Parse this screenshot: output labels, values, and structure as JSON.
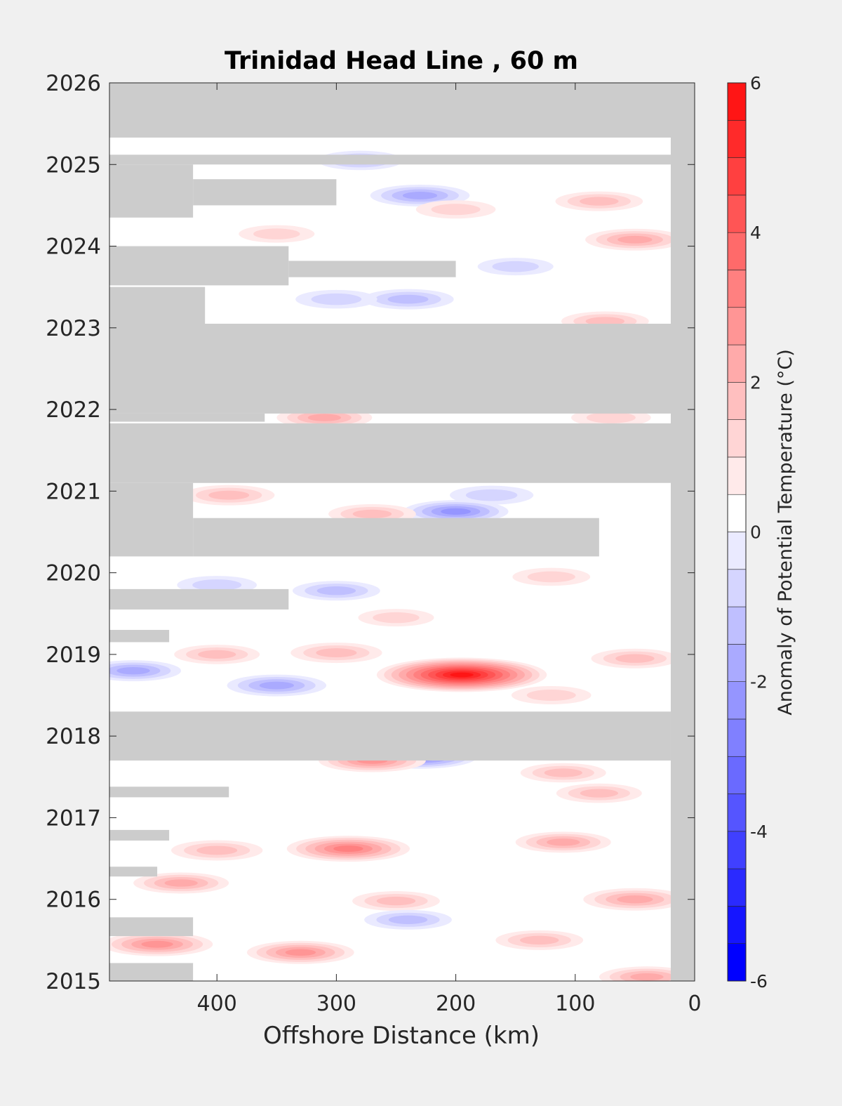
{
  "chart_data": {
    "type": "heatmap",
    "title": "Trinidad Head Line , 60 m",
    "xlabel": "Offshore Distance (km)",
    "ylabel": "",
    "xlim": [
      490,
      0
    ],
    "ylim": [
      2015,
      2026
    ],
    "x_reversed": true,
    "xticks": [
      400,
      300,
      200,
      100,
      0
    ],
    "yticks": [
      2015,
      2016,
      2017,
      2018,
      2019,
      2020,
      2021,
      2022,
      2023,
      2024,
      2025,
      2026
    ],
    "colorbar": {
      "label": "Anomaly of Potential Temperature (°C)",
      "min": -6,
      "max": 6,
      "step": 0.5,
      "ticks": [
        6,
        4,
        2,
        0,
        -2,
        -4,
        -6
      ],
      "low_color": "#0000ff",
      "mid_color": "#ffffff",
      "high_color": "#ff0000"
    },
    "nodata_color": "#cccccc",
    "nodata_bands": [
      {
        "t0": 2025.33,
        "t1": 2026.0,
        "x0": 490,
        "x1": 0
      },
      {
        "t0": 2025.0,
        "t1": 2025.12,
        "x0": 490,
        "x1": 20
      },
      {
        "t0": 2024.35,
        "t1": 2025.0,
        "x0": 490,
        "x1": 420
      },
      {
        "t0": 2024.5,
        "t1": 2024.82,
        "x0": 420,
        "x1": 300
      },
      {
        "t0": 2023.52,
        "t1": 2024.0,
        "x0": 490,
        "x1": 340
      },
      {
        "t0": 2023.62,
        "t1": 2023.82,
        "x0": 340,
        "x1": 200
      },
      {
        "t0": 2023.0,
        "t1": 2023.5,
        "x0": 490,
        "x1": 410
      },
      {
        "t0": 2021.95,
        "t1": 2023.05,
        "x0": 490,
        "x1": 0
      },
      {
        "t0": 2021.85,
        "t1": 2021.95,
        "x0": 490,
        "x1": 360
      },
      {
        "t0": 2021.1,
        "t1": 2021.83,
        "x0": 490,
        "x1": 0
      },
      {
        "t0": 2020.2,
        "t1": 2021.1,
        "x0": 490,
        "x1": 420
      },
      {
        "t0": 2020.2,
        "t1": 2020.67,
        "x0": 420,
        "x1": 80
      },
      {
        "t0": 2019.55,
        "t1": 2019.8,
        "x0": 490,
        "x1": 340
      },
      {
        "t0": 2019.15,
        "t1": 2019.3,
        "x0": 490,
        "x1": 440
      },
      {
        "t0": 2017.7,
        "t1": 2018.3,
        "x0": 490,
        "x1": 20
      },
      {
        "t0": 2017.25,
        "t1": 2017.38,
        "x0": 490,
        "x1": 390
      },
      {
        "t0": 2016.72,
        "t1": 2016.85,
        "x0": 490,
        "x1": 440
      },
      {
        "t0": 2016.28,
        "t1": 2016.4,
        "x0": 490,
        "x1": 450
      },
      {
        "t0": 2015.55,
        "t1": 2015.78,
        "x0": 490,
        "x1": 420
      },
      {
        "t0": 2015.0,
        "t1": 2015.22,
        "x0": 490,
        "x1": 420
      },
      {
        "t0": 2015.0,
        "t1": 2026.0,
        "x0": 20,
        "x1": 0
      }
    ],
    "anomaly_features": [
      {
        "t": 2025.05,
        "x": 280,
        "v": -1.5
      },
      {
        "t": 2024.62,
        "x": 230,
        "v": -2.2
      },
      {
        "t": 2024.45,
        "x": 200,
        "v": 1.2
      },
      {
        "t": 2024.55,
        "x": 80,
        "v": 1.6
      },
      {
        "t": 2024.08,
        "x": 50,
        "v": 2.2
      },
      {
        "t": 2024.15,
        "x": 350,
        "v": 1.0
      },
      {
        "t": 2023.75,
        "x": 150,
        "v": -1.0
      },
      {
        "t": 2023.35,
        "x": 240,
        "v": -1.8
      },
      {
        "t": 2023.35,
        "x": 300,
        "v": -1.3
      },
      {
        "t": 2023.08,
        "x": 75,
        "v": 1.6
      },
      {
        "t": 2021.9,
        "x": 310,
        "v": 2.0
      },
      {
        "t": 2021.9,
        "x": 70,
        "v": 1.2
      },
      {
        "t": 2020.95,
        "x": 390,
        "v": 1.8
      },
      {
        "t": 2020.95,
        "x": 170,
        "v": -1.4
      },
      {
        "t": 2020.75,
        "x": 200,
        "v": -2.5
      },
      {
        "t": 2020.72,
        "x": 270,
        "v": 1.6
      },
      {
        "t": 2019.78,
        "x": 300,
        "v": -1.6
      },
      {
        "t": 2019.85,
        "x": 400,
        "v": -1.2
      },
      {
        "t": 2019.95,
        "x": 120,
        "v": 1.1
      },
      {
        "t": 2019.45,
        "x": 250,
        "v": 1.0
      },
      {
        "t": 2019.02,
        "x": 300,
        "v": 1.8
      },
      {
        "t": 2019.0,
        "x": 400,
        "v": 1.5
      },
      {
        "t": 2018.95,
        "x": 50,
        "v": 1.6
      },
      {
        "t": 2018.75,
        "x": 195,
        "v": 5.8
      },
      {
        "t": 2018.8,
        "x": 470,
        "v": -2.0
      },
      {
        "t": 2018.62,
        "x": 350,
        "v": -2.2
      },
      {
        "t": 2018.5,
        "x": 120,
        "v": 1.2
      },
      {
        "t": 2017.75,
        "x": 230,
        "v": -3.0
      },
      {
        "t": 2017.7,
        "x": 270,
        "v": 2.6
      },
      {
        "t": 2017.55,
        "x": 110,
        "v": 1.5
      },
      {
        "t": 2017.3,
        "x": 80,
        "v": 1.5
      },
      {
        "t": 2016.62,
        "x": 290,
        "v": 3.4
      },
      {
        "t": 2016.7,
        "x": 110,
        "v": 2.0
      },
      {
        "t": 2016.6,
        "x": 400,
        "v": 1.8
      },
      {
        "t": 2016.2,
        "x": 430,
        "v": 2.0
      },
      {
        "t": 2016.0,
        "x": 50,
        "v": 2.4
      },
      {
        "t": 2015.98,
        "x": 250,
        "v": 1.6
      },
      {
        "t": 2015.75,
        "x": 240,
        "v": -1.6
      },
      {
        "t": 2015.45,
        "x": 450,
        "v": 2.8
      },
      {
        "t": 2015.35,
        "x": 330,
        "v": 2.6
      },
      {
        "t": 2015.5,
        "x": 130,
        "v": 1.6
      },
      {
        "t": 2015.05,
        "x": 40,
        "v": 2.0
      }
    ]
  }
}
